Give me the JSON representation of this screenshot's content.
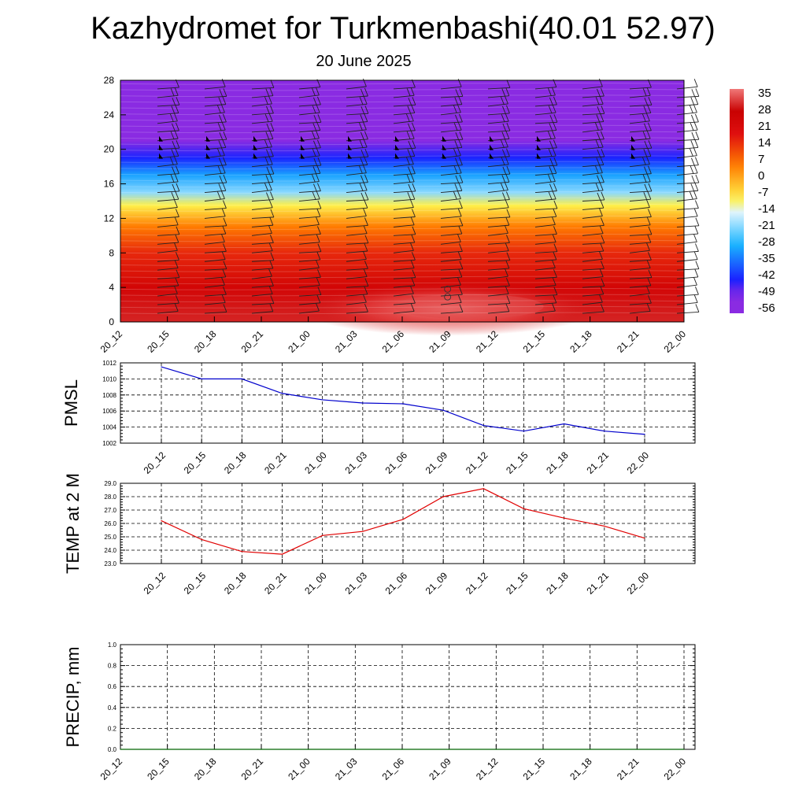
{
  "page": {
    "title": "Kazhydromet for Turkmenbashi(40.01 52.97)",
    "subtitle": "20 June 2025"
  },
  "chart_data": [
    {
      "type": "heatmap",
      "panel": "upper-air temperature cross-section with wind barbs",
      "title": "",
      "xlabel": "",
      "ylabel": "",
      "x_tick_labels": [
        "20_12",
        "20_15",
        "20_18",
        "20_21",
        "21_00",
        "21_03",
        "21_06",
        "21_09",
        "21_12",
        "21_15",
        "21_18",
        "21_21",
        "22_00"
      ],
      "y_ticks": [
        0,
        4,
        8,
        12,
        16,
        20,
        24,
        28
      ],
      "ylim": [
        0,
        28
      ],
      "colorbar": {
        "labels": [
          35,
          28,
          21,
          14,
          7,
          0,
          -7,
          -14,
          -21,
          -28,
          -35,
          -42,
          -49,
          -56
        ],
        "range": [
          -60,
          38
        ],
        "colors": {
          "violet": "#8a2be2",
          "blue": "#1a1aff",
          "sky": "#19b6ff",
          "pale": "#dff4ff",
          "yellow": "#fff04a",
          "orange": "#ff7a00",
          "red": "#e01010",
          "dark_red": "#c80000",
          "pink": "#f07878"
        }
      },
      "temperature_profile": [
        {
          "level": 0,
          "value": 31
        },
        {
          "level": 4,
          "value": 24
        },
        {
          "level": 8,
          "value": 15
        },
        {
          "level": 11,
          "value": 5
        },
        {
          "level": 13.5,
          "value": -10
        },
        {
          "level": 15,
          "value": -22
        },
        {
          "level": 17,
          "value": -32
        },
        {
          "level": 19,
          "value": -45
        },
        {
          "level": 21,
          "value": -58
        },
        {
          "level": 22.5,
          "value": -56
        },
        {
          "level": 28,
          "value": -56
        }
      ],
      "warm_core": {
        "center_tick": "21_09",
        "peak_value": 34
      }
    },
    {
      "type": "line",
      "title": "",
      "ylabel": "PMSL",
      "x": [
        "20_12",
        "20_15",
        "20_18",
        "20_21",
        "21_00",
        "21_03",
        "21_06",
        "21_09",
        "21_12",
        "21_15",
        "21_18",
        "21_21",
        "22_00"
      ],
      "series": [
        {
          "values": [
            1011.5,
            1010.0,
            1010.0,
            1008.2,
            1007.4,
            1007.0,
            1006.9,
            1006.1,
            1004.2,
            1003.5,
            1004.4,
            1003.5,
            1003.1
          ],
          "color": "#0000cc"
        }
      ],
      "y_ticks": [
        1002,
        1004,
        1006,
        1008,
        1010,
        1012
      ],
      "ylim": [
        1002,
        1012
      ],
      "grid": true
    },
    {
      "type": "line",
      "title": "",
      "ylabel": "TEMP at 2 M",
      "x": [
        "20_12",
        "20_15",
        "20_18",
        "20_21",
        "21_00",
        "21_03",
        "21_06",
        "21_09",
        "21_12",
        "21_15",
        "21_18",
        "21_21",
        "22_00"
      ],
      "series": [
        {
          "values": [
            26.2,
            24.8,
            23.9,
            23.7,
            25.1,
            25.4,
            26.3,
            28.0,
            28.6,
            27.1,
            26.4,
            25.8,
            24.9
          ],
          "color": "#e00000"
        }
      ],
      "y_tick_labels": [
        "23.0",
        "24.0",
        "25.0",
        "26.0",
        "27.0",
        "28.0",
        "29.0"
      ],
      "ylim": [
        23,
        29
      ],
      "grid": true
    },
    {
      "type": "line",
      "title": "",
      "ylabel": "PRECIP, mm",
      "x": [
        "20_12",
        "20_15",
        "20_18",
        "20_21",
        "21_00",
        "21_03",
        "21_06",
        "21_09",
        "21_12",
        "21_15",
        "21_18",
        "21_21",
        "22_00"
      ],
      "series": [
        {
          "values": [
            0,
            0,
            0,
            0,
            0,
            0,
            0,
            0,
            0,
            0,
            0,
            0,
            0
          ],
          "color": "#006400"
        }
      ],
      "y_tick_labels": [
        "0.0",
        "0.2",
        "0.4",
        "0.6",
        "0.8",
        "1.0"
      ],
      "ylim": [
        0,
        1
      ],
      "grid": true
    }
  ]
}
